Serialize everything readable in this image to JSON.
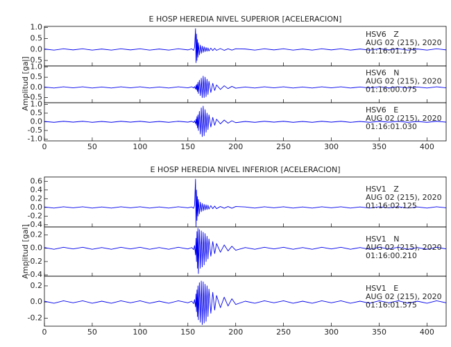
{
  "chart_data": [
    {
      "type": "line",
      "title": "E HOSP HEREDIA NIVEL SUPERIOR [ACELERACION]",
      "ylabel": "Amplitud [gal]",
      "xlim": [
        0,
        420
      ],
      "xticks": [
        0,
        50,
        100,
        150,
        200,
        250,
        300,
        350,
        400
      ],
      "x": [
        0,
        10,
        20,
        30,
        40,
        50,
        60,
        70,
        80,
        90,
        100,
        110,
        120,
        130,
        140,
        150,
        154,
        156,
        157,
        158,
        158.5,
        159,
        159.5,
        160,
        160.5,
        161,
        162,
        163,
        164,
        165,
        166,
        167,
        168,
        169,
        170,
        171,
        172,
        174,
        176,
        178,
        180,
        184,
        188,
        192,
        196,
        200,
        210,
        220,
        230,
        240,
        250,
        260,
        270,
        280,
        290,
        300,
        310,
        320,
        330,
        340,
        350,
        360,
        370,
        380,
        390,
        400,
        410,
        420
      ],
      "series": [
        {
          "name": "HSV6   Z",
          "date": "AUG 02 (215), 2020",
          "time": "01:16:01.175",
          "color": "#0000ee",
          "ylim": [
            -0.75,
            1.05
          ],
          "yticks": [
            {
              "value": 1.0,
              "label": "1.0"
            },
            {
              "value": 0.5,
              "label": "0.5"
            },
            {
              "value": 0.0,
              "label": "0.0"
            },
            {
              "value": -0.5,
              "label": "-0.5"
            }
          ],
          "values": [
            0.02,
            -0.03,
            0.03,
            -0.02,
            0.03,
            -0.03,
            0.02,
            -0.03,
            0.03,
            -0.02,
            0.03,
            -0.03,
            0.02,
            -0.03,
            0.03,
            -0.02,
            0.03,
            -0.04,
            0.1,
            0.95,
            -0.6,
            0.7,
            -0.5,
            0.45,
            -0.35,
            0.3,
            -0.25,
            0.2,
            -0.18,
            0.15,
            -0.13,
            0.12,
            -0.1,
            0.09,
            -0.08,
            0.07,
            -0.07,
            0.06,
            -0.05,
            0.05,
            -0.04,
            0.04,
            -0.04,
            0.03,
            -0.03,
            0.03,
            0.02,
            -0.03,
            0.03,
            -0.02,
            0.03,
            -0.03,
            0.02,
            -0.03,
            0.03,
            -0.02,
            0.03,
            -0.03,
            0.02,
            -0.03,
            0.03,
            -0.02,
            0.03,
            -0.03,
            0.02,
            -0.03,
            0.03,
            -0.02
          ]
        },
        {
          "name": "HSV6   N",
          "date": "AUG 02 (215), 2020",
          "time": "01:16:00.075",
          "color": "#0000ee",
          "ylim": [
            -0.75,
            1.05
          ],
          "yticks": [
            {
              "value": 1.0,
              "label": "1.0"
            },
            {
              "value": 0.5,
              "label": "0.5"
            },
            {
              "value": 0.0,
              "label": "0.0"
            },
            {
              "value": -0.5,
              "label": "-0.5"
            }
          ],
          "values": [
            0.02,
            -0.03,
            0.03,
            -0.02,
            0.03,
            -0.03,
            0.02,
            -0.03,
            0.03,
            -0.02,
            0.03,
            -0.03,
            0.02,
            -0.03,
            0.03,
            -0.02,
            0.03,
            -0.03,
            0.04,
            -0.08,
            0.1,
            -0.12,
            0.15,
            -0.2,
            0.25,
            -0.3,
            0.35,
            -0.4,
            0.45,
            -0.5,
            0.55,
            -0.5,
            0.5,
            -0.45,
            0.4,
            -0.35,
            0.3,
            -0.25,
            0.2,
            -0.15,
            0.12,
            -0.1,
            0.08,
            -0.06,
            0.05,
            -0.04,
            0.02,
            -0.03,
            0.03,
            -0.02,
            0.03,
            -0.03,
            0.02,
            -0.03,
            0.03,
            -0.02,
            0.03,
            -0.03,
            0.02,
            -0.03,
            0.03,
            -0.02,
            0.03,
            -0.03,
            0.02,
            -0.03,
            0.03,
            -0.02
          ]
        },
        {
          "name": "HSV6   E",
          "date": "AUG 02 (215), 2020",
          "time": "01:16:01.030",
          "color": "#0000ee",
          "ylim": [
            -1.1,
            1.1
          ],
          "yticks": [
            {
              "value": 1.0,
              "label": "1.0"
            },
            {
              "value": 0.5,
              "label": "0.5"
            },
            {
              "value": 0.0,
              "label": "0.0"
            },
            {
              "value": -0.5,
              "label": "-0.5"
            },
            {
              "value": -1.0,
              "label": "-1.0"
            }
          ],
          "values": [
            0.02,
            -0.03,
            0.03,
            -0.02,
            0.03,
            -0.03,
            0.02,
            -0.03,
            0.03,
            -0.02,
            0.03,
            -0.03,
            0.02,
            -0.03,
            0.03,
            -0.02,
            0.03,
            -0.04,
            0.06,
            -0.1,
            0.15,
            -0.2,
            0.3,
            -0.35,
            0.4,
            -0.5,
            0.6,
            -0.7,
            0.8,
            -0.85,
            0.9,
            -0.8,
            0.7,
            -0.6,
            0.5,
            -0.45,
            0.4,
            -0.3,
            0.25,
            -0.2,
            0.15,
            -0.12,
            0.1,
            -0.08,
            0.06,
            -0.05,
            0.02,
            -0.03,
            0.03,
            -0.02,
            0.03,
            -0.03,
            0.02,
            -0.03,
            0.03,
            -0.02,
            0.03,
            -0.03,
            0.02,
            -0.03,
            0.03,
            -0.02,
            0.03,
            -0.03,
            0.02,
            -0.03,
            0.03,
            -0.02
          ]
        }
      ]
    },
    {
      "type": "line",
      "title": "E HOSP HEREDIA NIVEL INFERIOR [ACELERACION]",
      "ylabel": "Amplitud [gal]",
      "xlim": [
        0,
        420
      ],
      "xticks": [
        0,
        50,
        100,
        150,
        200,
        250,
        300,
        350,
        400
      ],
      "x": [
        0,
        10,
        20,
        30,
        40,
        50,
        60,
        70,
        80,
        90,
        100,
        110,
        120,
        130,
        140,
        150,
        154,
        156,
        157,
        158,
        158.5,
        159,
        159.5,
        160,
        160.5,
        161,
        162,
        163,
        164,
        165,
        166,
        167,
        168,
        169,
        170,
        171,
        172,
        174,
        176,
        178,
        180,
        184,
        188,
        192,
        196,
        200,
        210,
        220,
        230,
        240,
        250,
        260,
        270,
        280,
        290,
        300,
        310,
        320,
        330,
        340,
        350,
        360,
        370,
        380,
        390,
        400,
        410,
        420
      ],
      "series": [
        {
          "name": "HSV1   Z",
          "date": "AUG 02 (215), 2020",
          "time": "01:16:02.125",
          "color": "#0000ee",
          "ylim": [
            -0.45,
            0.7
          ],
          "yticks": [
            {
              "value": 0.6,
              "label": "0.6"
            },
            {
              "value": 0.4,
              "label": "0.4"
            },
            {
              "value": 0.2,
              "label": "0.2"
            },
            {
              "value": 0.0,
              "label": "0.0"
            },
            {
              "value": -0.2,
              "label": "-0.2"
            },
            {
              "value": -0.4,
              "label": "-0.4"
            }
          ],
          "values": [
            0.01,
            -0.015,
            0.015,
            -0.01,
            0.015,
            -0.015,
            0.01,
            -0.015,
            0.015,
            -0.01,
            0.015,
            -0.015,
            0.01,
            -0.015,
            0.015,
            -0.01,
            0.01,
            -0.02,
            0.05,
            0.65,
            -0.45,
            0.4,
            -0.3,
            0.25,
            -0.2,
            0.18,
            -0.15,
            0.12,
            -0.1,
            0.09,
            -0.08,
            0.07,
            -0.06,
            0.06,
            -0.05,
            0.05,
            -0.04,
            0.04,
            -0.03,
            0.03,
            -0.03,
            0.02,
            -0.02,
            0.02,
            -0.02,
            0.02,
            0.01,
            -0.015,
            0.015,
            -0.01,
            0.015,
            -0.015,
            0.01,
            -0.015,
            0.015,
            -0.01,
            0.015,
            -0.015,
            0.01,
            -0.015,
            0.015,
            -0.01,
            0.015,
            -0.015,
            0.01,
            -0.015,
            0.015,
            -0.01
          ]
        },
        {
          "name": "HSV1   N",
          "date": "AUG 02 (215), 2020",
          "time": "01:16:00.210",
          "color": "#0000ee",
          "ylim": [
            -0.42,
            0.32
          ],
          "yticks": [
            {
              "value": 0.2,
              "label": "0.2"
            },
            {
              "value": 0.0,
              "label": "0.0"
            },
            {
              "value": -0.2,
              "label": "-0.2"
            },
            {
              "value": -0.4,
              "label": "-0.4"
            }
          ],
          "values": [
            0.01,
            -0.015,
            0.015,
            -0.01,
            0.015,
            -0.015,
            0.01,
            -0.015,
            0.015,
            -0.01,
            0.015,
            -0.015,
            0.01,
            -0.015,
            0.015,
            -0.01,
            0.01,
            -0.02,
            0.04,
            -0.1,
            0.15,
            -0.2,
            0.25,
            -0.3,
            0.3,
            -0.38,
            0.28,
            -0.3,
            0.26,
            -0.28,
            0.24,
            -0.25,
            0.22,
            -0.2,
            0.18,
            -0.16,
            0.14,
            -0.12,
            0.1,
            -0.08,
            0.07,
            -0.06,
            0.05,
            -0.04,
            0.03,
            -0.03,
            0.01,
            -0.015,
            0.015,
            -0.01,
            0.015,
            -0.015,
            0.01,
            -0.015,
            0.015,
            -0.01,
            0.015,
            -0.015,
            0.01,
            -0.015,
            0.015,
            -0.01,
            0.015,
            -0.015,
            0.01,
            -0.015,
            0.015,
            -0.01
          ]
        },
        {
          "name": "HSV1   E",
          "date": "AUG 02 (215), 2020",
          "time": "01:16:01.575",
          "color": "#0000ee",
          "ylim": [
            -0.3,
            0.32
          ],
          "yticks": [
            {
              "value": 0.2,
              "label": "0.2"
            },
            {
              "value": 0.0,
              "label": "0.0"
            },
            {
              "value": -0.2,
              "label": "-0.2"
            }
          ],
          "values": [
            0.01,
            -0.015,
            0.015,
            -0.01,
            0.015,
            -0.015,
            0.01,
            -0.015,
            0.015,
            -0.01,
            0.015,
            -0.015,
            0.01,
            -0.015,
            0.015,
            -0.01,
            0.01,
            -0.02,
            0.03,
            -0.06,
            0.1,
            -0.12,
            0.15,
            -0.18,
            0.2,
            -0.22,
            0.24,
            -0.25,
            0.26,
            -0.28,
            0.25,
            -0.26,
            0.22,
            -0.24,
            0.2,
            -0.18,
            0.16,
            -0.14,
            0.12,
            -0.1,
            0.08,
            -0.07,
            0.06,
            -0.05,
            0.04,
            -0.03,
            0.01,
            -0.015,
            0.015,
            -0.01,
            0.015,
            -0.015,
            0.01,
            -0.015,
            0.015,
            -0.01,
            0.015,
            -0.015,
            0.01,
            -0.015,
            0.015,
            -0.01,
            0.015,
            -0.015,
            0.01,
            -0.015,
            0.015,
            -0.01
          ]
        }
      ]
    }
  ]
}
